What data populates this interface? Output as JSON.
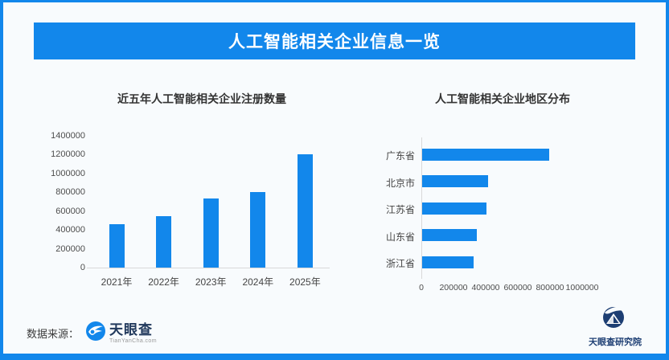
{
  "page": {
    "title": "人工智能相关企业信息一览"
  },
  "colors": {
    "accent": "#1287eb",
    "bar": "#1287eb",
    "chart_title": "#333333",
    "tick_text": "#4d4d4d",
    "navy_logo": "#1d3e73"
  },
  "footer": {
    "source_label": "数据来源：",
    "source_logo_name": "天眼查",
    "source_logo_sub": "TianYanCha.com",
    "research_logo_name": "天眼查研究院"
  },
  "chart_data": [
    {
      "type": "bar",
      "orientation": "vertical",
      "title": "近五年人工智能相关企业注册数量",
      "categories": [
        "2021年",
        "2022年",
        "2023年",
        "2024年",
        "2025年"
      ],
      "values": [
        460000,
        545000,
        735000,
        805000,
        1200000
      ],
      "ylabel": "",
      "xlabel": "",
      "ylim": [
        0,
        1400000
      ],
      "yticks": [
        0,
        200000,
        400000,
        600000,
        800000,
        1000000,
        1200000,
        1400000
      ],
      "grid": false,
      "legend": "none"
    },
    {
      "type": "bar",
      "orientation": "horizontal",
      "title": "人工智能相关企业地区分布",
      "categories": [
        "广东省",
        "北京市",
        "江苏省",
        "山东省",
        "浙江省"
      ],
      "values": [
        790000,
        410000,
        400000,
        340000,
        320000
      ],
      "ylabel": "",
      "xlabel": "",
      "xlim": [
        0,
        1000000
      ],
      "xticks": [
        0,
        200000,
        400000,
        600000,
        800000,
        1000000
      ],
      "grid": false,
      "legend": "none"
    }
  ]
}
